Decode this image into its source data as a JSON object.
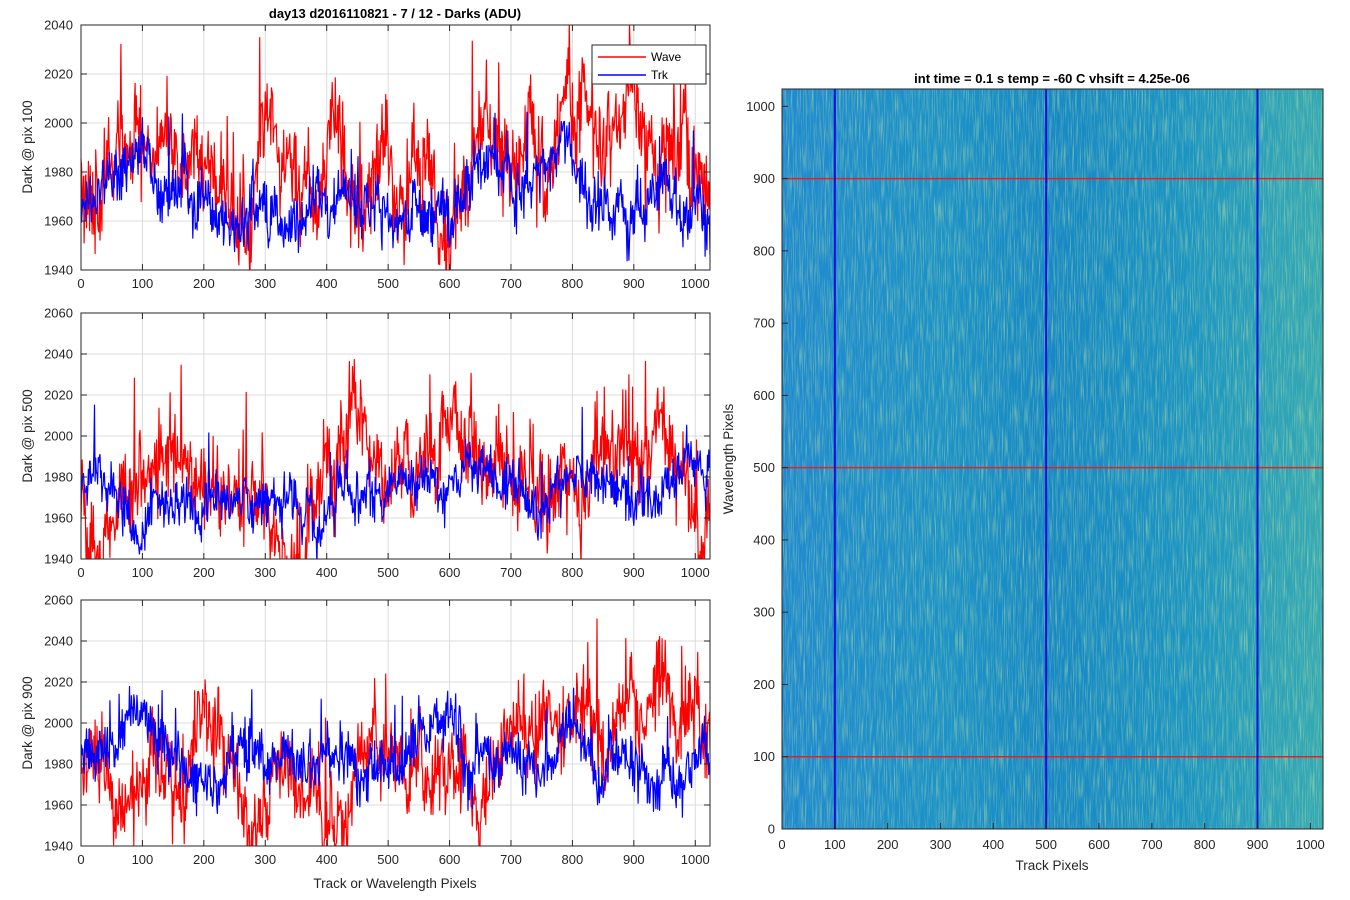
{
  "chart_data": [
    {
      "type": "line",
      "title": "day13 d2016110821 - 7 / 12 - Darks (ADU)",
      "xlabel": "",
      "ylabel": "Dark @ pix 100",
      "xlim": [
        0,
        1024
      ],
      "ylim": [
        1940,
        2040
      ],
      "xticks": [
        0,
        100,
        200,
        300,
        400,
        500,
        600,
        700,
        800,
        900,
        1000
      ],
      "yticks": [
        1940,
        1960,
        1980,
        2000,
        2020,
        2040
      ],
      "grid": true,
      "legend": {
        "placement": "top-right",
        "entries": [
          "Wave",
          "Trk"
        ]
      },
      "series": [
        {
          "name": "Wave",
          "color": "#ff0000",
          "baseline_start": 1975,
          "baseline_end": 1990,
          "noise_std": 12,
          "seed": 11
        },
        {
          "name": "Trk",
          "color": "#0000ff",
          "baseline_start": 1968,
          "baseline_end": 1970,
          "noise_std": 7,
          "seed": 12
        }
      ]
    },
    {
      "type": "line",
      "title": "",
      "xlabel": "",
      "ylabel": "Dark @ pix 500",
      "xlim": [
        0,
        1024
      ],
      "ylim": [
        1940,
        2060
      ],
      "xticks": [
        0,
        100,
        200,
        300,
        400,
        500,
        600,
        700,
        800,
        900,
        1000
      ],
      "yticks": [
        1940,
        1960,
        1980,
        2000,
        2020,
        2040,
        2060
      ],
      "grid": true,
      "series": [
        {
          "name": "Wave",
          "color": "#ff0000",
          "baseline_start": 1972,
          "baseline_end": 1992,
          "noise_std": 13,
          "seed": 21
        },
        {
          "name": "Trk",
          "color": "#0000ff",
          "baseline_start": 1972,
          "baseline_end": 1980,
          "noise_std": 7,
          "seed": 22
        }
      ]
    },
    {
      "type": "line",
      "title": "",
      "xlabel": "Track or Wavelength Pixels",
      "ylabel": "Dark @ pix 900",
      "xlim": [
        0,
        1024
      ],
      "ylim": [
        1940,
        2060
      ],
      "xticks": [
        0,
        100,
        200,
        300,
        400,
        500,
        600,
        700,
        800,
        900,
        1000
      ],
      "yticks": [
        1940,
        1960,
        1980,
        2000,
        2020,
        2040,
        2060
      ],
      "grid": true,
      "series": [
        {
          "name": "Wave",
          "color": "#ff0000",
          "baseline_start": 1975,
          "baseline_end": 1992,
          "noise_std": 12,
          "seed": 31
        },
        {
          "name": "Trk",
          "color": "#0000ff",
          "baseline_start": 1985,
          "baseline_end": 1985,
          "noise_std": 8,
          "seed": 32
        }
      ]
    },
    {
      "type": "heatmap",
      "title": "int time = 0.1 s   temp = -60 C   vhsift = 4.25e-06",
      "xlabel": "Track Pixels",
      "ylabel": "Wavelength Pixels",
      "xlim": [
        0,
        1024
      ],
      "ylim": [
        0,
        1024
      ],
      "xticks": [
        0,
        100,
        200,
        300,
        400,
        500,
        600,
        700,
        800,
        900,
        1000
      ],
      "yticks": [
        0,
        100,
        200,
        300,
        400,
        500,
        600,
        700,
        800,
        900,
        1000
      ],
      "colormap": "parula",
      "marker_lines": {
        "horizontal": {
          "values": [
            100,
            500,
            900
          ],
          "color": "#e8201f"
        },
        "vertical": {
          "values": [
            100,
            500,
            900
          ],
          "color": "#0a12e0"
        }
      }
    }
  ],
  "colors": {
    "wave": "#ff0000",
    "trk": "#0000ff",
    "grid": "#dcdcdc",
    "axis": "#262626"
  }
}
